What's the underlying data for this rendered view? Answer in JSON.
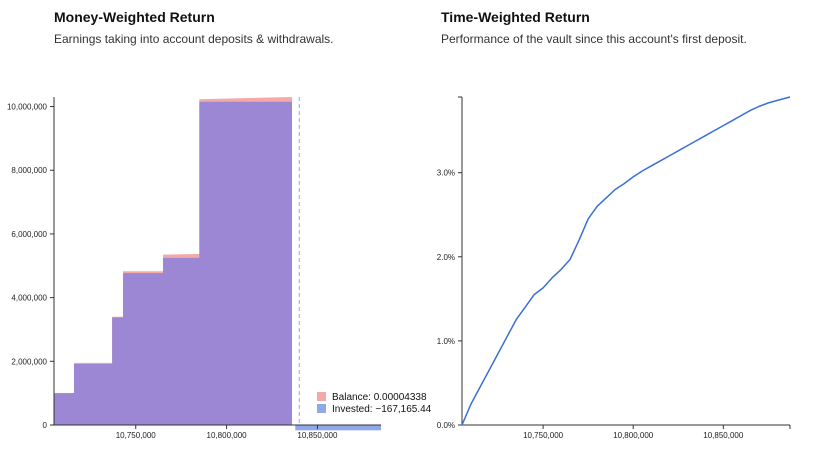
{
  "panels": {
    "left": {
      "title": "Money-Weighted Return",
      "subtitle": "Earnings taking into account deposits & withdrawals."
    },
    "right": {
      "title": "Time-Weighted Return",
      "subtitle": "Performance of the vault since this account's first deposit."
    }
  },
  "colors": {
    "balance": "#f4a8a8",
    "invested": "#9b87d4",
    "invested_legend": "#8fa8e8",
    "line": "#3a6fd8",
    "marker": "#9aa0f0"
  },
  "chart_data": [
    {
      "type": "area",
      "xlabel": "",
      "ylabel": "",
      "xlim": [
        10705000,
        10885000
      ],
      "ylim": [
        0,
        10300000
      ],
      "x_ticks": [
        "10,750,000",
        "10,800,000",
        "10,850,000"
      ],
      "x_tick_values": [
        10750000,
        10800000,
        10850000
      ],
      "y_ticks": [
        "0",
        "2,000,000",
        "4,000,000",
        "6,000,000",
        "8,000,000",
        "10,000,000"
      ],
      "y_tick_values": [
        0,
        2000000,
        4000000,
        6000000,
        8000000,
        10000000
      ],
      "series": [
        {
          "name": "Balance",
          "x": [
            10705000,
            10716000,
            10716000,
            10737000,
            10737000,
            10743000,
            10743000,
            10748000,
            10748000,
            10765000,
            10765000,
            10785000,
            10785000,
            10836000,
            10836000
          ],
          "values": [
            1000000,
            1000000,
            1950000,
            1950000,
            3400000,
            3400000,
            4830000,
            4830000,
            4830000,
            4830000,
            5350000,
            5370000,
            10230000,
            10300000,
            0
          ]
        },
        {
          "name": "Invested",
          "x": [
            10705000,
            10716000,
            10716000,
            10737000,
            10737000,
            10743000,
            10743000,
            10748000,
            10748000,
            10765000,
            10765000,
            10785000,
            10785000,
            10836000,
            10836000
          ],
          "values": [
            1000000,
            1000000,
            1920000,
            1920000,
            3380000,
            3380000,
            4770000,
            4770000,
            4770000,
            4770000,
            5250000,
            5250000,
            10150000,
            10150000,
            -167165.44
          ]
        }
      ],
      "hover_x": 10840000,
      "legend": [
        {
          "name": "Balance",
          "label": "Balance: 0.00004338"
        },
        {
          "name": "Invested",
          "label": "Invested: −167,165.44"
        }
      ],
      "legend_position": "bottom-right"
    },
    {
      "type": "line",
      "xlabel": "",
      "ylabel": "",
      "xlim": [
        10705000,
        10887000
      ],
      "ylim": [
        0,
        3.9
      ],
      "x_ticks": [
        "10,750,000",
        "10,800,000",
        "10,850,000"
      ],
      "x_tick_values": [
        10750000,
        10800000,
        10850000
      ],
      "y_ticks": [
        "0.0%",
        "1.0%",
        "2.0%",
        "3.0%"
      ],
      "y_tick_values": [
        0,
        1,
        2,
        3
      ],
      "series": [
        {
          "name": "",
          "x": [
            10705000,
            10710000,
            10715000,
            10720000,
            10725000,
            10730000,
            10735000,
            10740000,
            10745000,
            10750000,
            10755000,
            10760000,
            10765000,
            10770000,
            10775000,
            10780000,
            10785000,
            10790000,
            10795000,
            10800000,
            10805000,
            10810000,
            10815000,
            10820000,
            10825000,
            10830000,
            10835000,
            10840000,
            10845000,
            10850000,
            10855000,
            10860000,
            10865000,
            10870000,
            10875000,
            10880000,
            10887000
          ],
          "values": [
            0.0,
            0.25,
            0.45,
            0.65,
            0.85,
            1.05,
            1.25,
            1.4,
            1.55,
            1.63,
            1.75,
            1.85,
            1.97,
            2.2,
            2.45,
            2.6,
            2.7,
            2.8,
            2.87,
            2.95,
            3.02,
            3.08,
            3.14,
            3.2,
            3.26,
            3.32,
            3.38,
            3.44,
            3.5,
            3.56,
            3.62,
            3.68,
            3.74,
            3.79,
            3.83,
            3.86,
            3.9
          ]
        }
      ]
    }
  ]
}
